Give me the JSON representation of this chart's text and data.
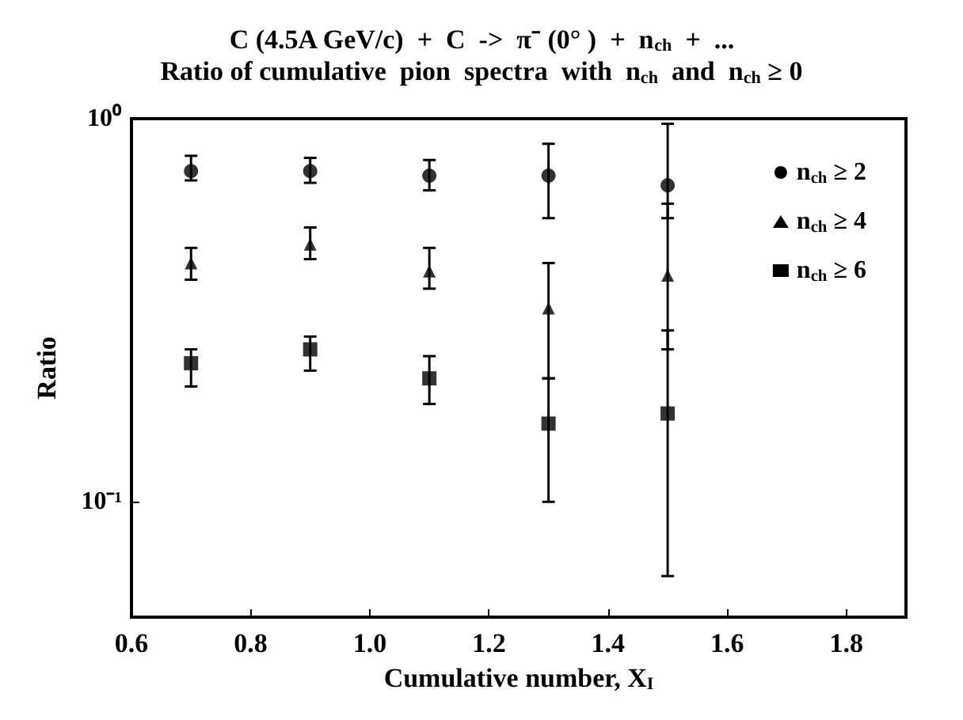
{
  "chart_data": {
    "type": "scatter",
    "title": "C (4.5A GeV/c)  +  C  ->  π⁻ (0° )  +  n$_{ch}$  +  ...",
    "subtitle": "Ratio of cumulative  pion  spectra  with  n$_{ch}$  and  n$_{ch}$ ≥ 0",
    "xlabel": "Cumulative number, X$_{I}$",
    "ylabel": "Ratio",
    "x": [
      0.7,
      0.9,
      1.1,
      1.3,
      1.5
    ],
    "series": [
      {
        "name": "n$_{ch}$ ≥ 2",
        "color": "#000000",
        "marker": "circle",
        "values": [
          0.73,
          0.73,
          0.71,
          0.71,
          0.67
        ],
        "errors": [
          [
            0.69,
            0.8
          ],
          [
            0.68,
            0.79
          ],
          [
            0.65,
            0.78
          ],
          [
            0.55,
            0.86
          ],
          [
            0.55,
            0.97
          ]
        ]
      },
      {
        "name": "n$_{ch}$ ≥ 4",
        "color": "#000000",
        "marker": "triangle",
        "values": [
          0.42,
          0.47,
          0.4,
          0.32,
          0.39
        ],
        "errors": [
          [
            0.38,
            0.46
          ],
          [
            0.43,
            0.52
          ],
          [
            0.36,
            0.46
          ],
          [
            0.21,
            0.42
          ],
          [
            0.25,
            0.6
          ]
        ]
      },
      {
        "name": "n$_{ch}$ ≥ 6",
        "color": "#000000",
        "marker": "square",
        "values": [
          0.23,
          0.25,
          0.21,
          0.16,
          0.17
        ],
        "errors": [
          [
            0.2,
            0.25
          ],
          [
            0.22,
            0.27
          ],
          [
            0.18,
            0.24
          ],
          [
            0.1,
            0.21
          ],
          [
            0.064,
            0.28
          ]
        ]
      }
    ],
    "xlim": [
      0.6,
      1.9
    ],
    "xticks": [
      {
        "value": 0.6,
        "label": "0.6"
      },
      {
        "value": 0.8,
        "label": "0.8"
      },
      {
        "value": 1.0,
        "label": "1.0"
      },
      {
        "value": 1.2,
        "label": "1.2"
      },
      {
        "value": 1.4,
        "label": "1.4"
      },
      {
        "value": 1.6,
        "label": "1.6"
      },
      {
        "value": 1.8,
        "label": "1.8"
      }
    ],
    "ylim": [
      0.05,
      1
    ],
    "yticks": [
      {
        "value": 0.1,
        "label": "10⁻¹"
      },
      {
        "value": 1,
        "label": "10⁰"
      }
    ],
    "log": "y",
    "grid": false,
    "legend": "top right"
  }
}
